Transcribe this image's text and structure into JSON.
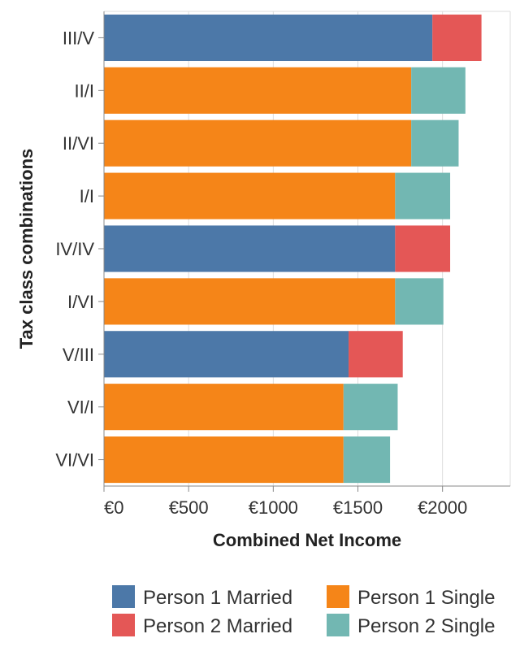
{
  "chart_data": {
    "type": "bar",
    "orientation": "horizontal",
    "stacked": true,
    "xlabel": "Combined Net Income",
    "ylabel": "Tax class combinations",
    "xlim": [
      0,
      2400
    ],
    "x_ticks": [
      0,
      500,
      1000,
      1500,
      2000
    ],
    "x_tick_labels": [
      "€0",
      "€500",
      "€1000",
      "€1500",
      "€2000"
    ],
    "grid": true,
    "legend_position": "bottom",
    "categories": [
      "III/V",
      "II/I",
      "II/VI",
      "I/I",
      "IV/IV",
      "I/VI",
      "V/III",
      "VI/I",
      "VI/VI"
    ],
    "series": [
      {
        "name": "Person 1 Married",
        "color": "#4c78a8",
        "values": [
          1940,
          null,
          null,
          null,
          1720,
          null,
          1445,
          null,
          null
        ]
      },
      {
        "name": "Person 2 Married",
        "color": "#e45756",
        "values": [
          290,
          null,
          null,
          null,
          325,
          null,
          320,
          null,
          null
        ]
      },
      {
        "name": "Person 1 Single",
        "color": "#f58518",
        "values": [
          null,
          1815,
          1815,
          1720,
          null,
          1720,
          null,
          1415,
          1415
        ]
      },
      {
        "name": "Person 2 Single",
        "color": "#72b7b2",
        "values": [
          null,
          320,
          280,
          325,
          null,
          285,
          null,
          320,
          275
        ]
      }
    ],
    "legend": [
      {
        "name": "Person 1 Married",
        "color": "#4c78a8"
      },
      {
        "name": "Person 1 Single",
        "color": "#f58518"
      },
      {
        "name": "Person 2 Married",
        "color": "#e45756"
      },
      {
        "name": "Person 2 Single",
        "color": "#72b7b2"
      }
    ]
  }
}
